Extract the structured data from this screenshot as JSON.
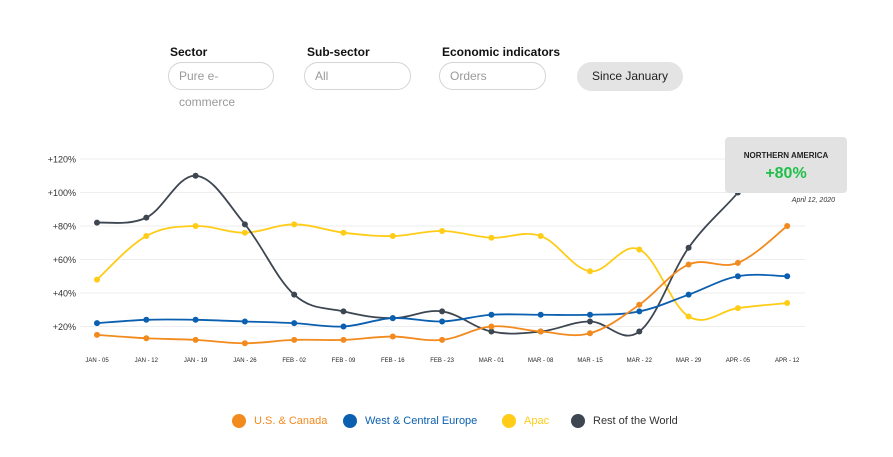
{
  "filters": {
    "sector": {
      "label": "Sector",
      "value": "Pure e-commerce"
    },
    "subsector": {
      "label": "Sub-sector",
      "value": "All"
    },
    "indicators": {
      "label": "Economic indicators",
      "value": "Orders"
    },
    "period_button": "Since January"
  },
  "tooltip": {
    "region": "NORTHERN AMERICA",
    "value": "+80%",
    "date": "April 12, 2020",
    "value_color": "#1fbf4a"
  },
  "chart_data": {
    "type": "line",
    "categories": [
      "JAN - 05",
      "JAN - 12",
      "JAN - 19",
      "JAN - 26",
      "FEB - 02",
      "FEB - 09",
      "FEB - 16",
      "FEB - 23",
      "MAR - 01",
      "MAR - 08",
      "MAR - 15",
      "MAR - 22",
      "MAR - 29",
      "APR - 05",
      "APR - 12"
    ],
    "y_ticks": [
      "+20%",
      "+40%",
      "+60%",
      "+80%",
      "+100%",
      "+120%"
    ],
    "y_tick_values": [
      20,
      40,
      60,
      80,
      100,
      120
    ],
    "ylim": [
      8,
      120
    ],
    "grid": true,
    "legend_position": "bottom",
    "series": [
      {
        "name": "U.S. & Canada",
        "color": "#f28a1e",
        "values": [
          15,
          13,
          12,
          10,
          12,
          12,
          14,
          12,
          20,
          17,
          16,
          33,
          57,
          58,
          80
        ]
      },
      {
        "name": "West & Central Europe",
        "color": "#0b5fb0",
        "values": [
          22,
          24,
          24,
          23,
          22,
          20,
          25,
          23,
          27,
          27,
          27,
          29,
          39,
          50,
          50
        ]
      },
      {
        "name": "Apac",
        "color": "#ffcc17",
        "values": [
          48,
          74,
          80,
          76,
          81,
          76,
          74,
          77,
          73,
          74,
          53,
          66,
          26,
          31,
          34
        ]
      },
      {
        "name": "Rest of the World",
        "color": "#3d4651",
        "values": [
          82,
          85,
          110,
          81,
          39,
          29,
          25,
          29,
          17,
          17,
          23,
          17,
          67,
          100,
          null
        ]
      }
    ]
  }
}
